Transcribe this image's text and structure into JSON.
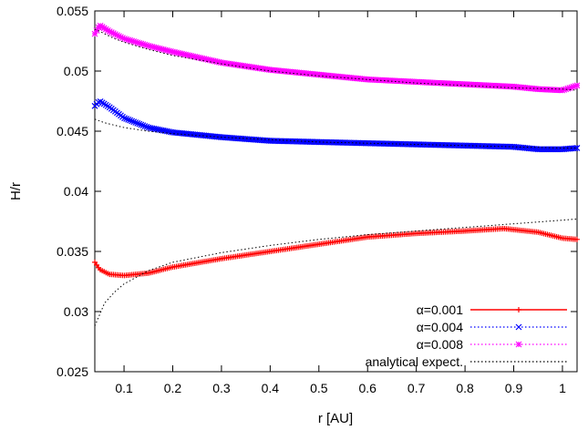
{
  "chart_data": {
    "type": "line",
    "xlabel": "r [AU]",
    "ylabel": "H/r",
    "xlim": [
      0.04,
      1.03
    ],
    "ylim": [
      0.025,
      0.055
    ],
    "xticks": [
      "0.1",
      "0.2",
      "0.3",
      "0.4",
      "0.5",
      "0.6",
      "0.7",
      "0.8",
      "0.9",
      "1"
    ],
    "xtick_values": [
      0.1,
      0.2,
      0.3,
      0.4,
      0.5,
      0.6,
      0.7,
      0.8,
      0.9,
      1.0
    ],
    "yticks": [
      "0.025",
      "0.03",
      "0.035",
      "0.04",
      "0.045",
      "0.05",
      "0.055"
    ],
    "ytick_values": [
      0.025,
      0.03,
      0.035,
      0.04,
      0.045,
      0.05,
      0.055
    ],
    "grid": false,
    "legend_position": "bottom-right",
    "series": [
      {
        "name": "α=0.001",
        "color": "#ff0000",
        "marker": "plus",
        "line": "solid",
        "x": [
          0.04,
          0.05,
          0.07,
          0.1,
          0.15,
          0.2,
          0.3,
          0.4,
          0.5,
          0.6,
          0.7,
          0.8,
          0.88,
          0.95,
          1.0,
          1.03
        ],
        "y": [
          0.0341,
          0.0335,
          0.0331,
          0.033,
          0.0332,
          0.0337,
          0.0344,
          0.035,
          0.0356,
          0.0362,
          0.0365,
          0.0367,
          0.0369,
          0.0366,
          0.0361,
          0.036
        ]
      },
      {
        "name": "α=0.004",
        "color": "#0000ff",
        "marker": "x",
        "line": "dotted",
        "x": [
          0.04,
          0.05,
          0.07,
          0.1,
          0.15,
          0.2,
          0.3,
          0.4,
          0.5,
          0.6,
          0.7,
          0.8,
          0.9,
          0.95,
          1.0,
          1.03
        ],
        "y": [
          0.0471,
          0.0475,
          0.047,
          0.0461,
          0.0453,
          0.0449,
          0.0445,
          0.0442,
          0.0441,
          0.044,
          0.0439,
          0.0438,
          0.0437,
          0.0435,
          0.0435,
          0.0436
        ]
      },
      {
        "name": "α=0.008",
        "color": "#ff00ff",
        "marker": "star",
        "line": "dotted",
        "x": [
          0.04,
          0.05,
          0.07,
          0.1,
          0.15,
          0.2,
          0.3,
          0.4,
          0.5,
          0.6,
          0.7,
          0.8,
          0.9,
          0.95,
          1.0,
          1.03
        ],
        "y": [
          0.0531,
          0.0538,
          0.0533,
          0.0527,
          0.0521,
          0.0516,
          0.0507,
          0.0501,
          0.0497,
          0.0493,
          0.0491,
          0.0489,
          0.0487,
          0.0485,
          0.0484,
          0.0488
        ]
      },
      {
        "name": "analytical expect.",
        "color": "#000000",
        "marker": "none",
        "line": "dotted",
        "x": [
          0.04,
          0.06,
          0.08,
          0.1,
          0.15,
          0.2,
          0.3,
          0.4,
          0.5,
          0.6,
          0.7,
          0.8,
          0.9,
          1.0,
          1.03
        ],
        "y": [
          0.0288,
          0.0307,
          0.0316,
          0.0323,
          0.0334,
          0.0341,
          0.0349,
          0.0355,
          0.036,
          0.0364,
          0.0367,
          0.037,
          0.0373,
          0.0376,
          0.0377
        ]
      },
      {
        "name": "analytical expect. (α=0.004)",
        "color": "#000000",
        "marker": "none",
        "line": "dotted",
        "x": [
          0.04,
          0.06,
          0.08,
          0.1,
          0.15,
          0.2,
          0.3,
          0.4,
          0.5,
          0.6,
          0.7,
          0.8,
          0.9,
          1.0,
          1.03
        ],
        "y": [
          0.046,
          0.0457,
          0.0455,
          0.0453,
          0.045,
          0.0448,
          0.0445,
          0.0443,
          0.0441,
          0.044,
          0.0439,
          0.0438,
          0.0437,
          0.0436,
          0.0436
        ]
      },
      {
        "name": "analytical expect. (α=0.008)",
        "color": "#000000",
        "marker": "none",
        "line": "dotted",
        "x": [
          0.04,
          0.06,
          0.08,
          0.1,
          0.15,
          0.2,
          0.3,
          0.4,
          0.5,
          0.6,
          0.7,
          0.8,
          0.9,
          1.0,
          1.03
        ],
        "y": [
          0.0535,
          0.0531,
          0.0527,
          0.0524,
          0.0518,
          0.0513,
          0.0506,
          0.05,
          0.0496,
          0.0493,
          0.049,
          0.0488,
          0.0486,
          0.0485,
          0.0484
        ]
      }
    ],
    "legend": [
      {
        "label": "α=0.001",
        "color": "#ff0000",
        "marker": "plus",
        "line": "solid"
      },
      {
        "label": "α=0.004",
        "color": "#0000ff",
        "marker": "x",
        "line": "dotted"
      },
      {
        "label": "α=0.008",
        "color": "#ff00ff",
        "marker": "star",
        "line": "dotted"
      },
      {
        "label": "analytical expect.",
        "color": "#000000",
        "marker": "none",
        "line": "dotted"
      }
    ]
  }
}
